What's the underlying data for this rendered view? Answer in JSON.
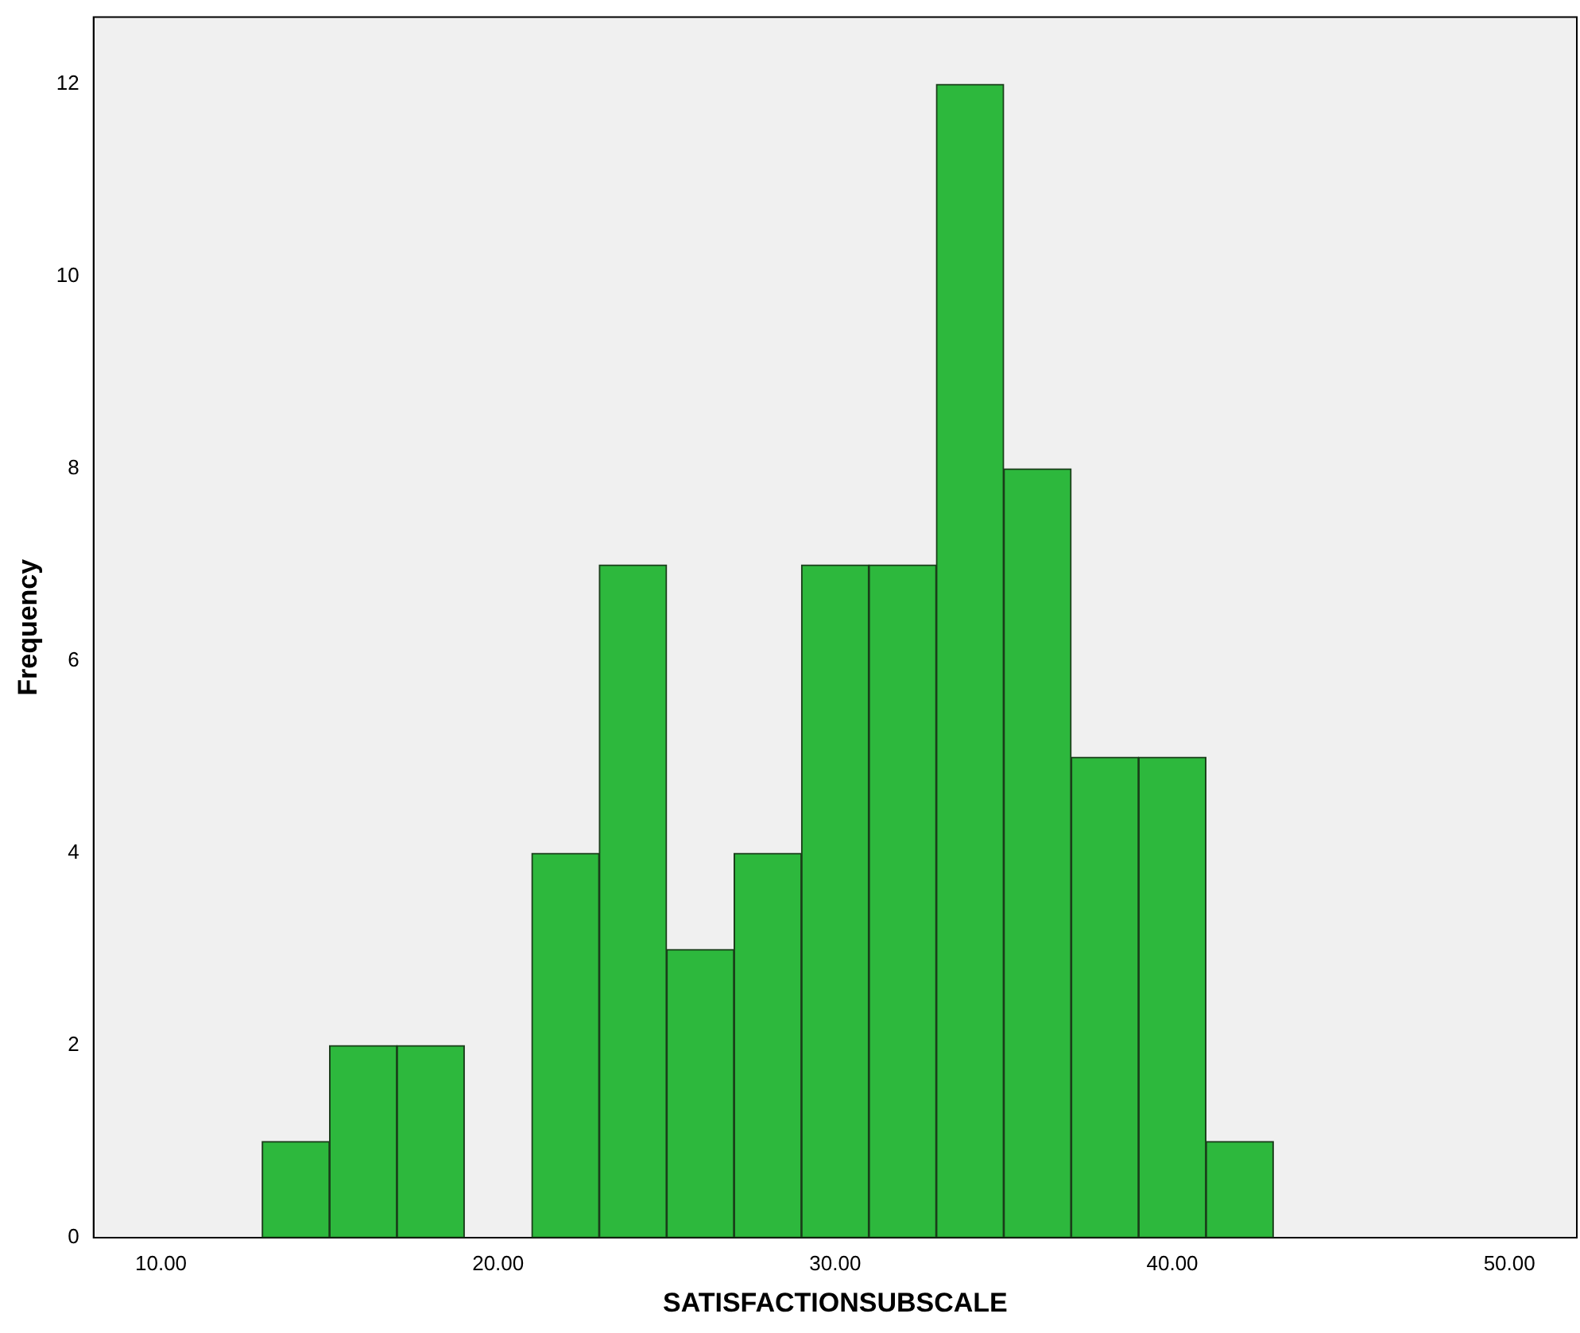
{
  "chart_data": {
    "type": "histogram",
    "xlabel": "SATISFACTIONSUBSCALE",
    "ylabel": "Frequency",
    "bins": [
      13,
      15,
      17,
      19,
      21,
      23,
      25,
      27,
      29,
      31,
      33,
      35,
      37,
      39,
      41,
      43
    ],
    "values": [
      1,
      2,
      2,
      0,
      4,
      7,
      3,
      4,
      7,
      7,
      12,
      8,
      5,
      5,
      1
    ],
    "color": "#2db83d",
    "xlim": [
      8,
      52
    ],
    "xticks": [
      {
        "value": 10,
        "label": "10.00"
      },
      {
        "value": 20,
        "label": "20.00"
      },
      {
        "value": 30,
        "label": "30.00"
      },
      {
        "value": 40,
        "label": "40.00"
      },
      {
        "value": 50,
        "label": "50.00"
      }
    ],
    "ylim": [
      0,
      12.7
    ],
    "yticks": [
      0,
      2,
      4,
      6,
      8,
      10,
      12
    ],
    "grid": false,
    "legend": false
  }
}
